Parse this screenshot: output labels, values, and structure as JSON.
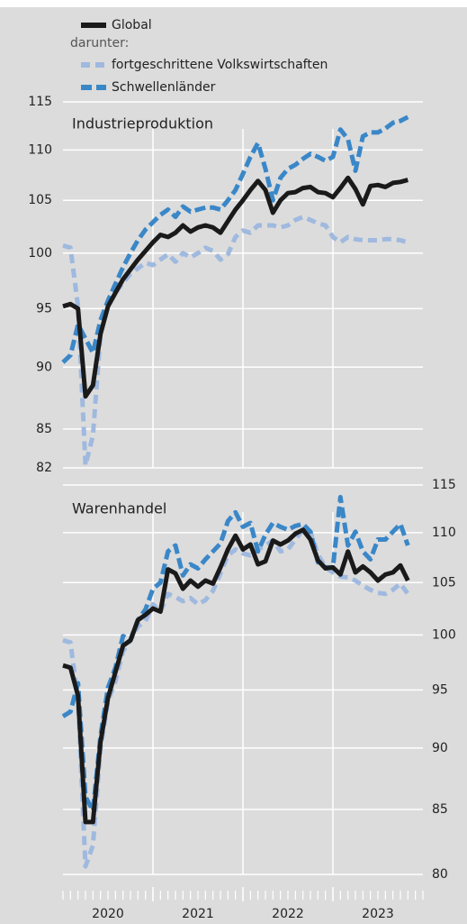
{
  "chart_data": [
    {
      "type": "line",
      "title": "Industrieproduktion",
      "legend_note": "darunter:",
      "ylog": true,
      "yaxis_side": "left",
      "xlim": [
        0,
        48
      ],
      "xgrid": [
        12,
        24,
        36
      ],
      "x": [
        0,
        1,
        2,
        3,
        4,
        5,
        6,
        7,
        8,
        9,
        10,
        11,
        12,
        13,
        14,
        15,
        16,
        17,
        18,
        19,
        20,
        21,
        22,
        23,
        24,
        25,
        26,
        27,
        28,
        29,
        30,
        31,
        32,
        33,
        34,
        35,
        36,
        37,
        38,
        39,
        40,
        41,
        42,
        43,
        44,
        45,
        46
      ],
      "ylim": [
        82,
        115
      ],
      "yticks": [
        82,
        85,
        90,
        95,
        100,
        105,
        110,
        115
      ],
      "grid": true,
      "series": [
        {
          "name": "Global",
          "color": "#1a1a1a",
          "dash": "none",
          "values": [
            95.2,
            95.4,
            95.0,
            87.6,
            88.5,
            92.8,
            95.2,
            96.4,
            97.6,
            98.5,
            99.4,
            100.2,
            101.0,
            101.7,
            101.5,
            101.9,
            102.6,
            102.0,
            102.4,
            102.6,
            102.4,
            101.9,
            103.0,
            104.1,
            105.0,
            106.0,
            106.9,
            106.0,
            103.8,
            105.0,
            105.7,
            105.8,
            106.2,
            106.3,
            105.8,
            105.7,
            105.3,
            106.2,
            107.2,
            106.1,
            104.6,
            106.4,
            106.5,
            106.3,
            106.7,
            106.8,
            107.0
          ]
        },
        {
          "name": "fortgeschrittene Volkswirtschaften",
          "color": "#9fb9df",
          "dash": "10 6",
          "values": [
            100.7,
            100.5,
            95.2,
            82.2,
            84.5,
            92.8,
            95.2,
            96.4,
            97.3,
            98.1,
            98.6,
            99.1,
            98.9,
            99.4,
            99.9,
            99.2,
            100.0,
            99.6,
            100.0,
            100.5,
            100.2,
            99.4,
            99.9,
            101.5,
            102.1,
            101.9,
            102.6,
            102.6,
            102.6,
            102.4,
            102.6,
            103.1,
            103.4,
            103.1,
            102.8,
            102.6,
            101.5,
            101.0,
            101.5,
            101.3,
            101.2,
            101.2,
            101.2,
            101.3,
            101.3,
            101.2,
            101.0
          ]
        },
        {
          "name": "Schwellenländer",
          "color": "#3a87c8",
          "dash": "12 5",
          "values": [
            90.4,
            91.0,
            93.6,
            92.4,
            91.2,
            94.0,
            95.7,
            97.2,
            98.7,
            100.0,
            101.2,
            102.2,
            102.9,
            103.6,
            104.1,
            103.4,
            104.4,
            103.9,
            104.1,
            104.3,
            104.3,
            104.1,
            105.0,
            106.0,
            107.6,
            109.3,
            110.7,
            108.1,
            105.0,
            107.2,
            108.1,
            108.5,
            109.1,
            109.6,
            109.3,
            108.9,
            109.3,
            112.1,
            111.1,
            107.9,
            111.4,
            111.8,
            111.8,
            112.2,
            112.8,
            113.0,
            113.4
          ]
        }
      ]
    },
    {
      "type": "line",
      "title": "Warenhandel",
      "ylog": true,
      "yaxis_side": "right",
      "xlim": [
        0,
        48
      ],
      "xgrid": [
        12,
        24,
        36
      ],
      "xticks": [
        {
          "value": 6,
          "label": "2020"
        },
        {
          "value": 18,
          "label": "2021"
        },
        {
          "value": 30,
          "label": "2022"
        },
        {
          "value": 42,
          "label": "2023"
        }
      ],
      "xminorticks": [
        0,
        1,
        2,
        3,
        4,
        5,
        6,
        7,
        8,
        9,
        10,
        11,
        12,
        13,
        14,
        15,
        16,
        17,
        18,
        19,
        20,
        21,
        22,
        23,
        24,
        25,
        26,
        27,
        28,
        29,
        30,
        31,
        32,
        33,
        34,
        35,
        36,
        37,
        38,
        39,
        40,
        41,
        42,
        43,
        44,
        45,
        46,
        47,
        48
      ],
      "x": [
        0,
        1,
        2,
        3,
        4,
        5,
        6,
        7,
        8,
        9,
        10,
        11,
        12,
        13,
        14,
        15,
        16,
        17,
        18,
        19,
        20,
        21,
        22,
        23,
        24,
        25,
        26,
        27,
        28,
        29,
        30,
        31,
        32,
        33,
        34,
        35,
        36,
        37,
        38,
        39,
        40,
        41,
        42,
        43,
        44,
        45,
        46
      ],
      "ylim": [
        80,
        115
      ],
      "yticks": [
        80,
        85,
        90,
        95,
        100,
        105,
        110,
        115
      ],
      "grid": true,
      "series": [
        {
          "name": "Global",
          "color": "#1a1a1a",
          "dash": "none",
          "values": [
            97.2,
            97.0,
            94.5,
            84.0,
            84.0,
            90.5,
            94.3,
            96.6,
            99.0,
            99.5,
            101.4,
            101.9,
            102.5,
            102.2,
            106.3,
            105.9,
            104.4,
            105.2,
            104.6,
            105.2,
            104.9,
            106.5,
            108.3,
            109.7,
            108.3,
            108.8,
            106.8,
            107.1,
            109.2,
            108.8,
            109.2,
            109.9,
            110.3,
            109.3,
            107.2,
            106.4,
            106.5,
            105.8,
            108.1,
            106.0,
            106.6,
            106.0,
            105.2,
            105.8,
            106.0,
            106.7,
            105.2
          ]
        },
        {
          "name": "fortgeschrittene Volkswirtschaften",
          "color": "#9fb9df",
          "dash": "10 6",
          "values": [
            99.5,
            99.3,
            94.1,
            80.6,
            82.2,
            90.0,
            94.0,
            95.8,
            98.5,
            99.5,
            100.8,
            101.3,
            102.9,
            102.2,
            103.9,
            103.6,
            103.2,
            103.5,
            102.9,
            103.3,
            104.2,
            105.9,
            107.7,
            108.3,
            107.9,
            107.7,
            108.3,
            108.7,
            109.2,
            108.1,
            108.3,
            109.3,
            110.3,
            110.1,
            107.8,
            106.5,
            106.0,
            105.6,
            105.5,
            105.2,
            104.7,
            104.3,
            104.0,
            103.9,
            104.3,
            104.9,
            103.9
          ]
        },
        {
          "name": "Schwellenländer",
          "color": "#3a87c8",
          "dash": "12 5",
          "values": [
            92.7,
            93.1,
            95.6,
            86.0,
            84.9,
            91.0,
            95.2,
            97.0,
            99.9,
            99.5,
            101.4,
            102.4,
            104.4,
            105.0,
            108.1,
            108.7,
            105.7,
            106.8,
            106.4,
            107.3,
            108.1,
            108.9,
            111.2,
            112.1,
            110.6,
            111.0,
            108.1,
            109.8,
            111.0,
            110.6,
            110.3,
            110.7,
            110.9,
            110.1,
            107.0,
            106.5,
            106.5,
            113.7,
            108.7,
            110.1,
            108.1,
            107.3,
            109.3,
            109.3,
            110.1,
            110.9,
            108.7
          ]
        }
      ]
    }
  ]
}
